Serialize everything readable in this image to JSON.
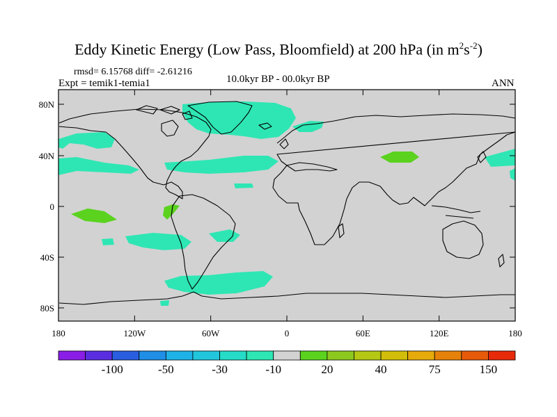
{
  "title": {
    "main": "Eddy Kinetic Energy (Low Pass, Bloomfield) at 200 hPa (in m",
    "sup1": "2",
    "mid": "s",
    "sup2": "-2",
    "end": ")"
  },
  "stats": "rmsd= 6.15768 diff= -2.61216",
  "experiment": "Expt = temik1-temia1",
  "period": "10.0kyr BP - 00.0kyr BP",
  "season": "ANN",
  "axes": {
    "lat_labels": [
      "80N",
      "40N",
      "0",
      "40S",
      "80S"
    ],
    "lon_labels": [
      "180",
      "120W",
      "60W",
      "0",
      "60E",
      "120E",
      "180"
    ]
  },
  "colorbar": {
    "colors": [
      "#8a1ee6",
      "#5a2ee0",
      "#2a5ee0",
      "#1f8ee6",
      "#1fb2e6",
      "#22c6dc",
      "#26dcc8",
      "#2ee6b4",
      "#d2d2d2",
      "#5ad21e",
      "#8cc81e",
      "#b4c814",
      "#d2be0a",
      "#e6aa0a",
      "#e6820a",
      "#e65a0a",
      "#e62a0a"
    ],
    "labels": [
      "-100",
      "-50",
      "-30",
      "-10",
      "20",
      "40",
      "75",
      "150"
    ]
  },
  "map_colors": {
    "background": "#d2d2d2",
    "cyan": "#2ee6b4",
    "green": "#5ad21e"
  }
}
